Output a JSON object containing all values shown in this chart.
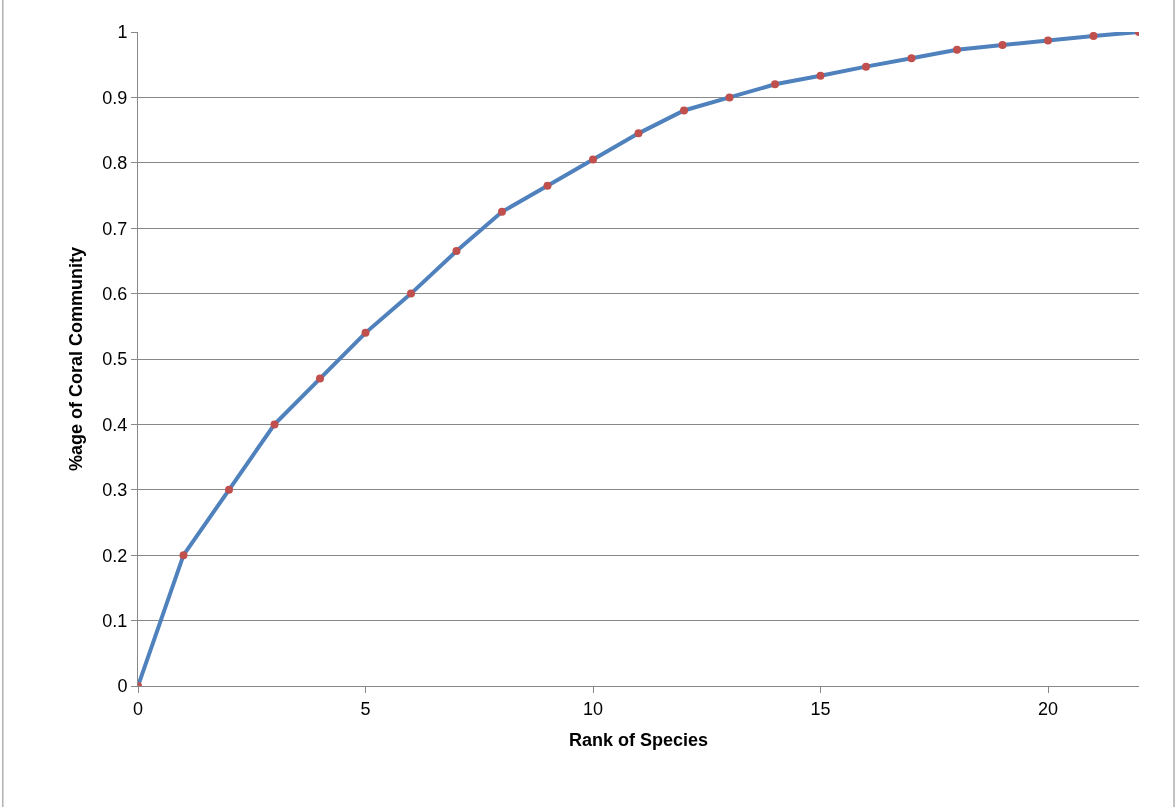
{
  "chart_data": {
    "type": "line",
    "xlabel": "Rank of Species",
    "ylabel": "%age of Coral Community",
    "x": [
      0,
      1,
      2,
      3,
      4,
      5,
      6,
      7,
      8,
      9,
      10,
      11,
      12,
      13,
      14,
      15,
      16,
      17,
      18,
      19,
      20,
      21,
      22
    ],
    "series": [
      {
        "color": "#4f81bd",
        "colors": [
          "#c0504d",
          "#c0504d",
          "#c0504d",
          "#c0504d",
          "#c0504d",
          "#c0504d",
          "#c0504d",
          "#c0504d",
          "#c0504d",
          "#c0504d",
          "#c0504d",
          "#c0504d",
          "#c0504d",
          "#c0504d",
          "#c0504d",
          "#c0504d",
          "#c0504d",
          "#c0504d",
          "#c0504d",
          "#c0504d",
          "#c0504d",
          "#c0504d",
          "#c0504d"
        ],
        "values": [
          0,
          0.2,
          0.3,
          0.4,
          0.47,
          0.54,
          0.6,
          0.665,
          0.725,
          0.765,
          0.805,
          0.845,
          0.88,
          0.9,
          0.92,
          0.933,
          0.947,
          0.96,
          0.973,
          0.98,
          0.987,
          0.994,
          1
        ]
      }
    ],
    "xlim": [
      0,
      22
    ],
    "xticks": [
      0,
      5,
      10,
      15,
      20
    ],
    "ylim": [
      0,
      1
    ],
    "yticks": [
      0,
      0.1,
      0.2,
      0.3,
      0.4,
      0.5,
      0.6,
      0.7,
      0.8,
      0.9,
      1
    ],
    "grid": "y",
    "marker": "circle",
    "line_style": "solid"
  }
}
